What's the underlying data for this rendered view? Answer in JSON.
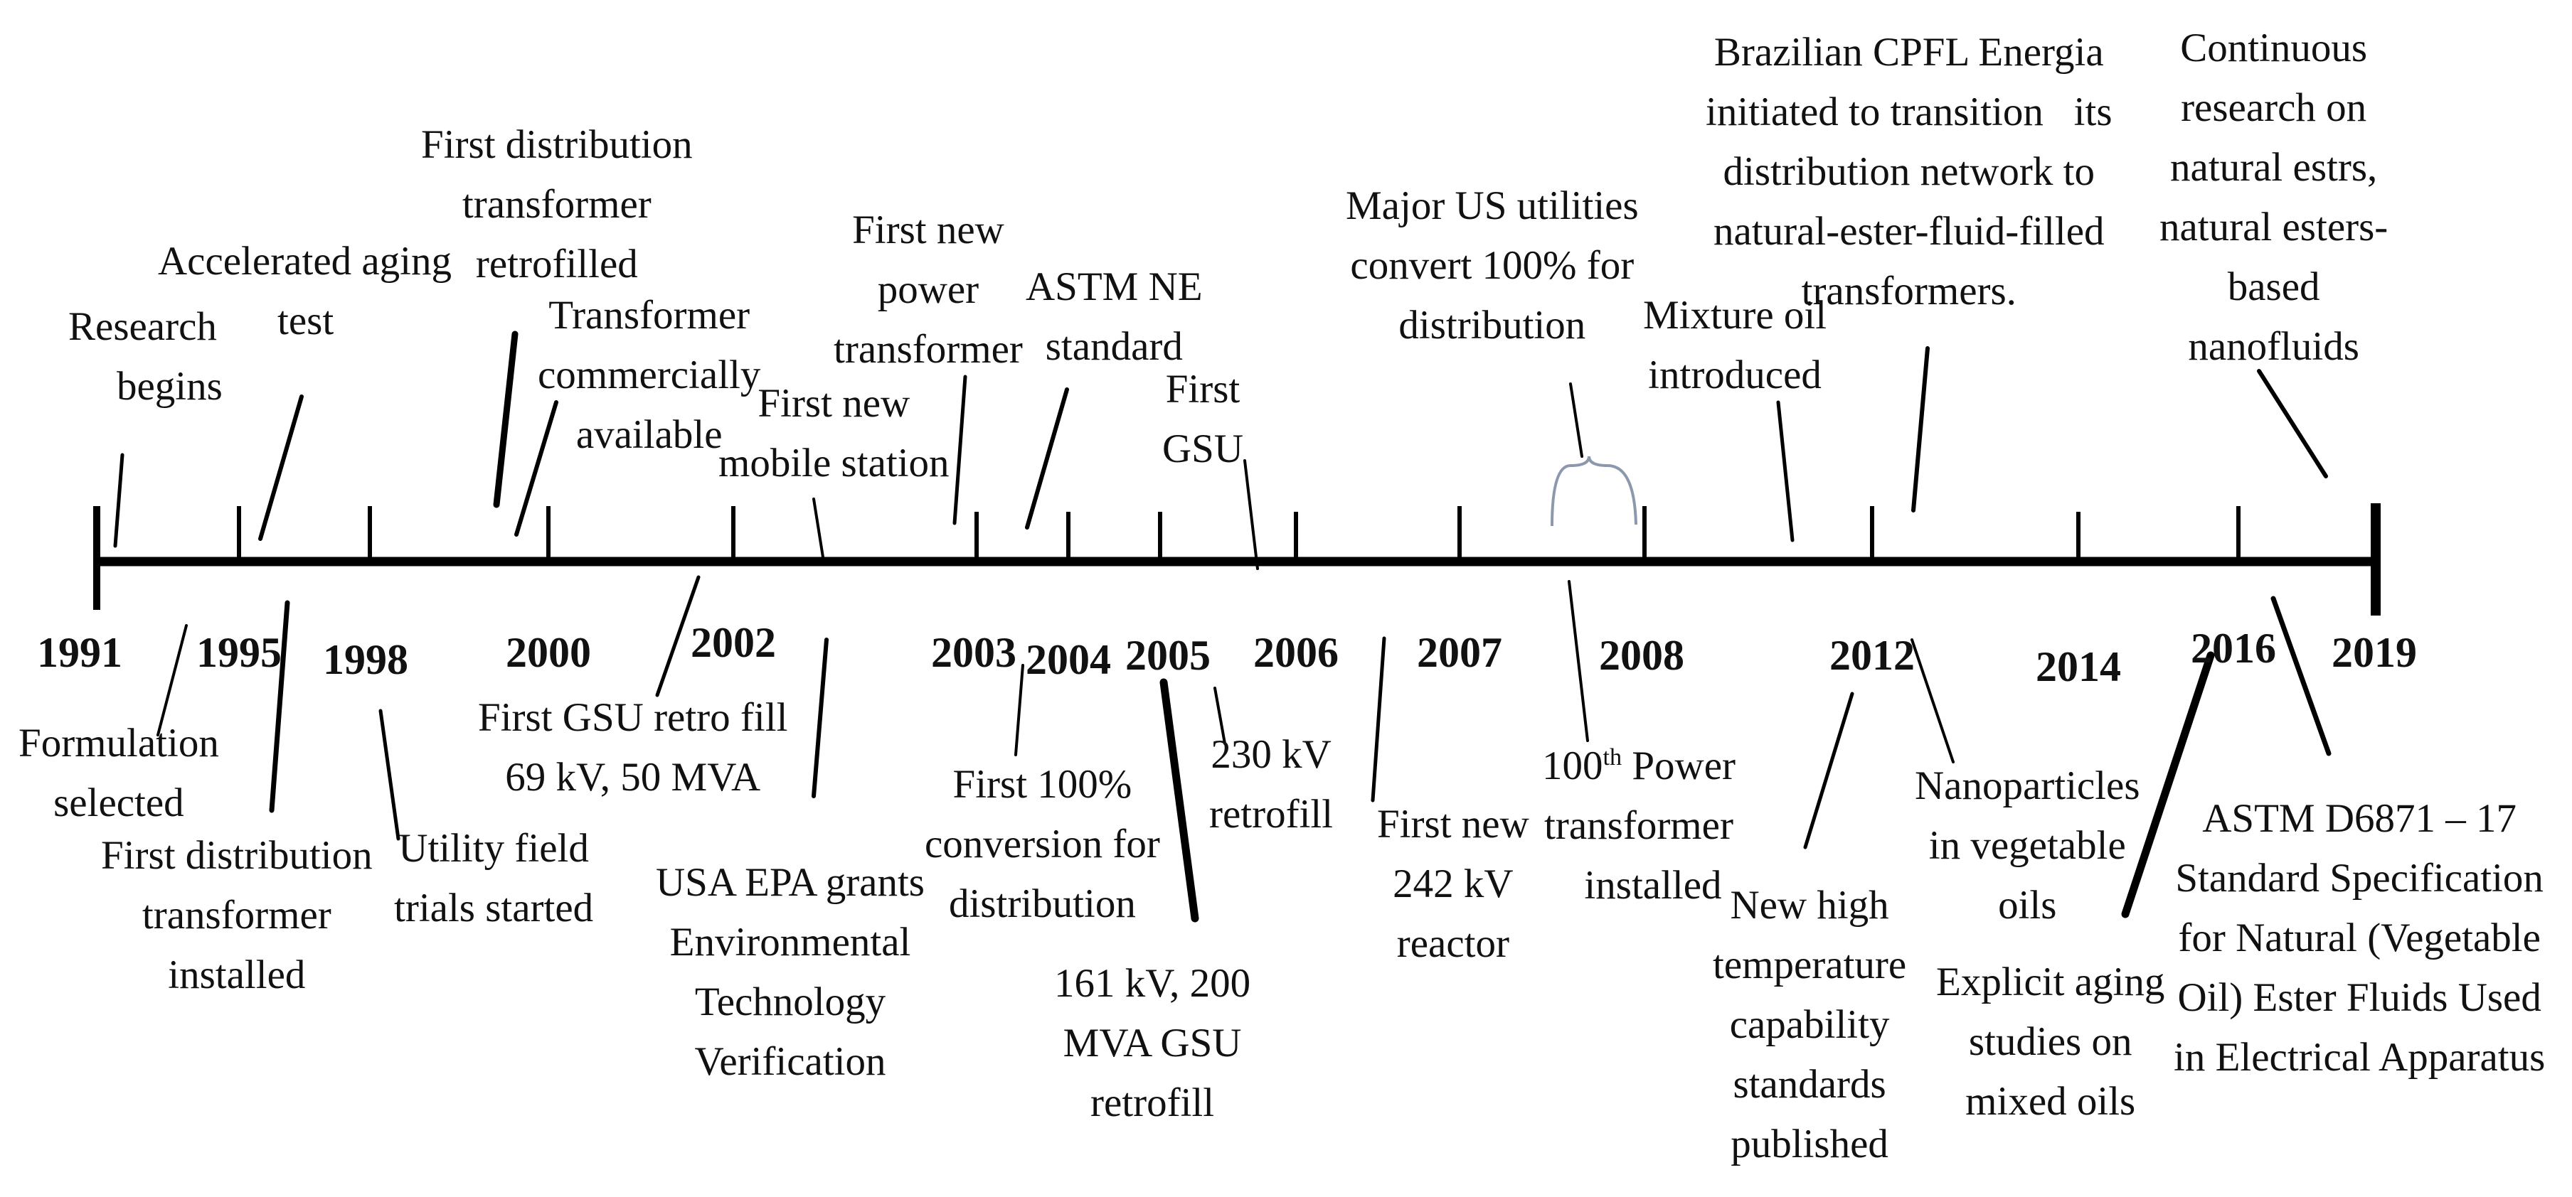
{
  "timeline": {
    "years": [
      "1991",
      "1995",
      "1998",
      "2000",
      "2002",
      "2003",
      "2004",
      "2005",
      "2006",
      "2007",
      "2008",
      "2012",
      "2014",
      "2016",
      "2019"
    ],
    "events_above": [
      {
        "lines": [
          "Research",
          "begins"
        ]
      },
      {
        "lines": [
          "Accelerated aging",
          "test"
        ]
      },
      {
        "lines": [
          "First distribution",
          "transformer",
          "retrofilled"
        ]
      },
      {
        "lines": [
          "Transformer",
          "commercially",
          "available"
        ]
      },
      {
        "lines": [
          "First new",
          "mobile station"
        ]
      },
      {
        "lines": [
          "First new",
          "power",
          "transformer"
        ]
      },
      {
        "lines": [
          "ASTM NE",
          "standard"
        ]
      },
      {
        "lines": [
          "First",
          "GSU"
        ]
      },
      {
        "lines": [
          "Major US utilities",
          "convert 100% for",
          "distribution"
        ]
      },
      {
        "lines": [
          "Mixture oil",
          "introduced"
        ]
      },
      {
        "lines": [
          "Brazilian CPFL Energia",
          "initiated to transition   its",
          "distribution network to",
          "natural-ester-fluid-filled",
          "transformers."
        ]
      },
      {
        "lines": [
          "Continuous",
          "research on",
          "natural estrs,",
          "natural esters-",
          "based",
          "nanofluids"
        ]
      }
    ],
    "events_below": [
      {
        "lines": [
          "Formulation",
          "selected"
        ]
      },
      {
        "lines": [
          "First distribution",
          "transformer",
          "installed"
        ]
      },
      {
        "lines": [
          "Utility field",
          "trials started"
        ]
      },
      {
        "lines": [
          "First GSU retro fill",
          "69 kV, 50 MVA"
        ]
      },
      {
        "lines": [
          "USA EPA grants",
          "Environmental",
          "Technology",
          "Verification"
        ]
      },
      {
        "lines": [
          "First 100%",
          "conversion for",
          "distribution"
        ]
      },
      {
        "lines": [
          "161 kV, 200",
          "MVA GSU",
          "retrofill"
        ]
      },
      {
        "lines": [
          "230 kV",
          "retrofill"
        ]
      },
      {
        "lines": [
          "First new",
          "242 kV",
          "reactor"
        ]
      },
      {
        "lines": [
          "100",
          "th",
          " Power",
          "transformer",
          "installed"
        ]
      },
      {
        "lines": [
          "New high",
          "temperature",
          "capability",
          "standards",
          "published"
        ]
      },
      {
        "lines": [
          "Nanoparticles",
          "in vegetable",
          "oils"
        ]
      },
      {
        "lines": [
          "Explicit aging",
          "studies on",
          "mixed oils"
        ]
      },
      {
        "lines": [
          "ASTM D6871 – 17",
          "Standard Specification",
          "for Natural (Vegetable",
          "Oil) Ester Fluids Used",
          "in Electrical Apparatus"
        ]
      }
    ]
  }
}
